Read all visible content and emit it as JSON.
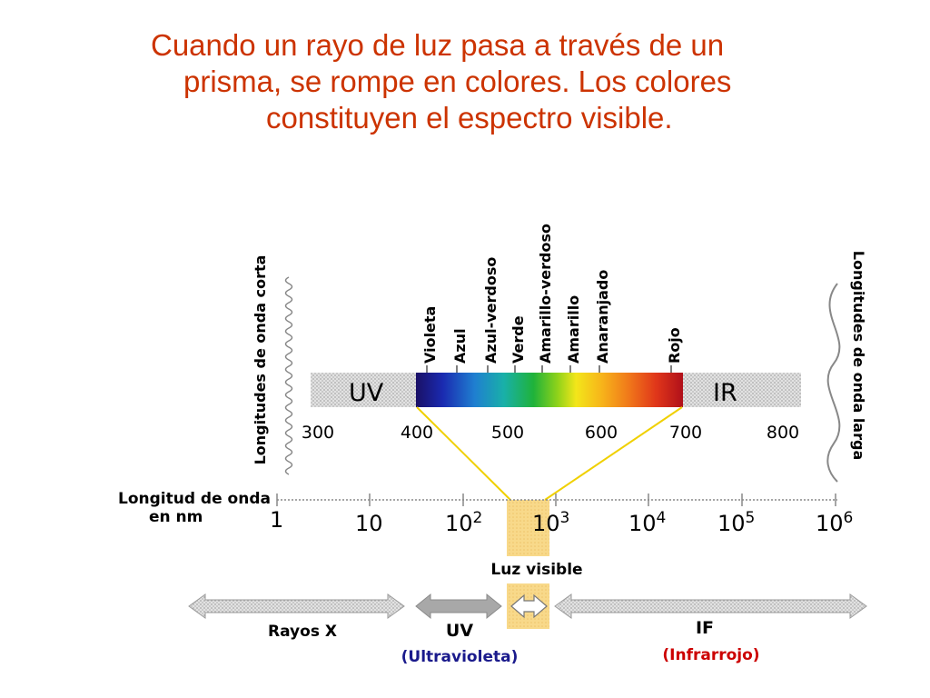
{
  "title": {
    "line1": "Cuando un rayo de luz pasa a través de un",
    "line2": "prisma, se rompe en colores. Los colores",
    "line3": "constituyen el espectro visible."
  },
  "spectrum": {
    "short_waves_label": "Longitudes de onda corta",
    "long_waves_label": "Longitudes de onda larga",
    "uv_band": "UV",
    "ir_band": "IR",
    "color_labels": [
      "Violeta",
      "Azul",
      "Azul-verdoso",
      "Verde",
      "Amarillo-verdoso",
      "Amarillo",
      "Anaranjado",
      "Rojo"
    ],
    "nm_ticks": [
      "300",
      "400",
      "500",
      "600",
      "700",
      "800"
    ]
  },
  "scale": {
    "label_line1": "Longitud de onda",
    "label_line2": "en nm",
    "ticks": [
      {
        "base": "1",
        "exp": ""
      },
      {
        "base": "10",
        "exp": ""
      },
      {
        "base": "10",
        "exp": "2"
      },
      {
        "base": "10",
        "exp": "3"
      },
      {
        "base": "10",
        "exp": "4"
      },
      {
        "base": "10",
        "exp": "5"
      },
      {
        "base": "10",
        "exp": "6"
      }
    ],
    "visible_label": "Luz visible"
  },
  "bands": {
    "xray": "Rayos X",
    "uv": "UV",
    "uv_full": "(Ultravioleta)",
    "ir": "IF",
    "ir_full": "(Infrarrojo)"
  },
  "colors": {
    "title": "#cc3300",
    "yellow_lines": "#f0d000",
    "visible_box": "#f8d98a",
    "band_fill": "#c8c8c8",
    "uv_full_label": "#1a1a8c",
    "ir_full_label": "#cc0000"
  }
}
